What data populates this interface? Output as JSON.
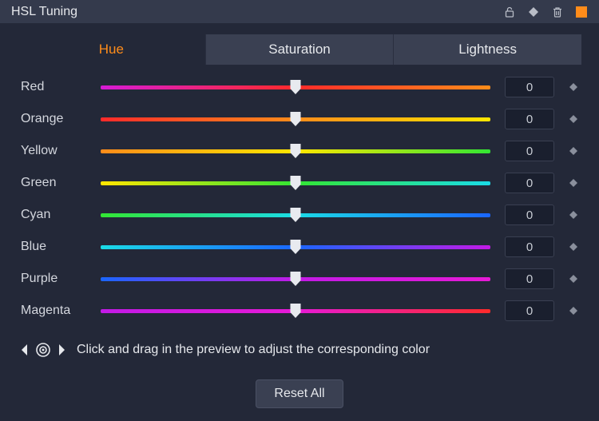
{
  "title": "HSL Tuning",
  "tabs": {
    "hue": "Hue",
    "saturation": "Saturation",
    "lightness": "Lightness",
    "active": "hue"
  },
  "sliders": {
    "track_height": 5,
    "thumb_color": "#e8eaef",
    "rows": [
      {
        "key": "red",
        "label": "Red",
        "value": "0",
        "gradient": [
          "#d61bd6",
          "#ff2a2a",
          "#ff8c1a"
        ]
      },
      {
        "key": "orange",
        "label": "Orange",
        "value": "0",
        "gradient": [
          "#ff2a2a",
          "#ff8c1a",
          "#ffe600"
        ]
      },
      {
        "key": "yellow",
        "label": "Yellow",
        "value": "0",
        "gradient": [
          "#ff8c1a",
          "#ffe600",
          "#33e633"
        ]
      },
      {
        "key": "green",
        "label": "Green",
        "value": "0",
        "gradient": [
          "#ffe600",
          "#33e633",
          "#1adbe6"
        ]
      },
      {
        "key": "cyan",
        "label": "Cyan",
        "value": "0",
        "gradient": [
          "#33e633",
          "#1adbe6",
          "#1a66ff"
        ]
      },
      {
        "key": "blue",
        "label": "Blue",
        "value": "0",
        "gradient": [
          "#1adbe6",
          "#1a66ff",
          "#c21ae6"
        ]
      },
      {
        "key": "purple",
        "label": "Purple",
        "value": "0",
        "gradient": [
          "#1a66ff",
          "#c21ae6",
          "#e61ad6"
        ]
      },
      {
        "key": "magenta",
        "label": "Magenta",
        "value": "0",
        "gradient": [
          "#c21ae6",
          "#e61ad6",
          "#ff2a2a"
        ]
      }
    ]
  },
  "hint": "Click and drag in the preview to adjust the corresponding color",
  "reset_label": "Reset All",
  "colors": {
    "panel_bg": "#232838",
    "titlebar_bg": "#343a4c",
    "tab_bg": "#3a4052",
    "accent": "#ff8c1a",
    "text": "#e6e8ec",
    "value_box_bg": "#1a1f2e",
    "value_box_border": "#3a4052",
    "diamond": "#8a8f9c"
  }
}
